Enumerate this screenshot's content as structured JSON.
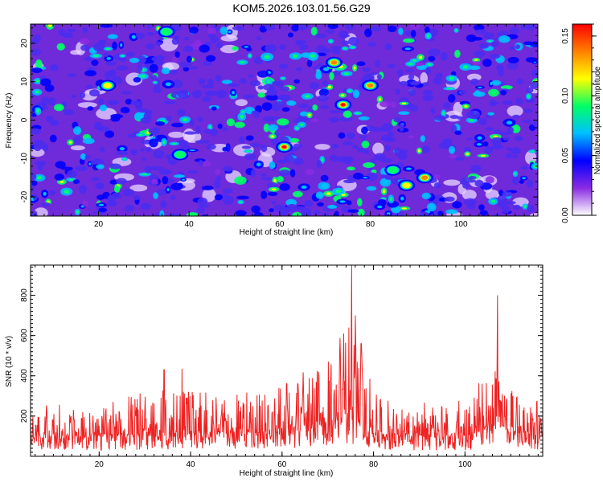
{
  "page": {
    "title": "KOM5.2026.103.01.56.G29"
  },
  "chart_data": [
    {
      "type": "heatmap",
      "title": "KOM5.2026.103.01.56.G29",
      "xlabel": "Height of straight line (km)",
      "ylabel": "Frequency (Hz)",
      "xlim": [
        5,
        117
      ],
      "ylim": [
        -25,
        25
      ],
      "x_ticks": [
        20,
        40,
        60,
        80,
        100
      ],
      "y_ticks": [
        -20,
        -10,
        0,
        10,
        20
      ],
      "colorbar": {
        "label": "Normalized spectral amplitude",
        "range": [
          0.0,
          0.16
        ],
        "ticks": [
          "0.00",
          "0.05",
          "0.10",
          "0.15"
        ],
        "colors": [
          "#ffffff",
          "#8a2be2",
          "#0000ff",
          "#00bfff",
          "#00ff66",
          "#ffff00",
          "#ff8000",
          "#ff0000"
        ]
      },
      "hotspots": [
        {
          "x": 61,
          "y": -7,
          "v": 0.15
        },
        {
          "x": 74,
          "y": 4,
          "v": 0.15
        },
        {
          "x": 80,
          "y": 9,
          "v": 0.12
        },
        {
          "x": 72,
          "y": 15,
          "v": 0.12
        },
        {
          "x": 92,
          "y": -15,
          "v": 0.12
        },
        {
          "x": 88,
          "y": -17,
          "v": 0.1
        },
        {
          "x": 22,
          "y": 9,
          "v": 0.1
        },
        {
          "x": 35,
          "y": 23,
          "v": 0.09
        },
        {
          "x": 38,
          "y": -9,
          "v": 0.08
        },
        {
          "x": 85,
          "y": -13,
          "v": 0.08
        }
      ]
    },
    {
      "type": "line",
      "xlabel": "Height of straight line (km)",
      "ylabel": "SNR (10 * v/v)",
      "xlim": [
        5,
        117
      ],
      "ylim": [
        0,
        950
      ],
      "x_ticks": [
        20,
        40,
        60,
        80,
        100
      ],
      "y_ticks": [
        200,
        400,
        600,
        800
      ],
      "color": "#ee2222",
      "samples": 1100,
      "envelope": {
        "x": [
          5,
          20,
          33,
          40,
          50,
          60,
          66,
          70,
          73,
          75,
          76,
          78,
          80,
          84,
          90,
          100,
          104,
          107,
          110,
          117
        ],
        "base": [
          90,
          95,
          110,
          110,
          105,
          130,
          150,
          170,
          190,
          210,
          200,
          160,
          120,
          100,
          95,
          100,
          130,
          160,
          120,
          100
        ],
        "amp": [
          160,
          170,
          230,
          230,
          210,
          250,
          280,
          320,
          420,
          560,
          470,
          330,
          240,
          180,
          170,
          180,
          260,
          300,
          220,
          170
        ]
      },
      "peaks": [
        {
          "x": 75.2,
          "y": 950
        },
        {
          "x": 107.1,
          "y": 800
        },
        {
          "x": 74.6,
          "y": 640
        },
        {
          "x": 73.5,
          "y": 610
        },
        {
          "x": 76.0,
          "y": 700
        },
        {
          "x": 77.3,
          "y": 560
        },
        {
          "x": 72.8,
          "y": 500
        },
        {
          "x": 38.1,
          "y": 435
        },
        {
          "x": 34.2,
          "y": 430
        }
      ]
    }
  ]
}
